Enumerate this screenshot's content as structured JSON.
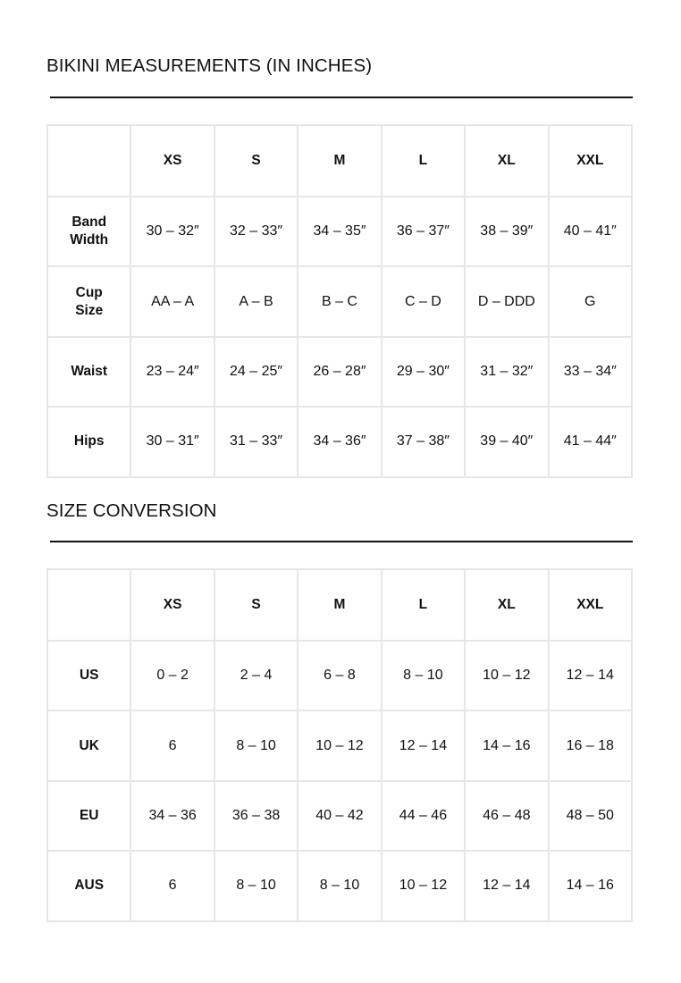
{
  "measurements": {
    "title": "BIKINI MEASUREMENTS (IN INCHES)",
    "headers": [
      "",
      "XS",
      "S",
      "M",
      "L",
      "XL",
      "XXL"
    ],
    "rows": [
      {
        "label": "Band Width",
        "values": [
          "30 – 32″",
          "32 – 33″",
          "34 – 35″",
          "36 – 37″",
          "38 – 39″",
          "40 – 41″"
        ]
      },
      {
        "label": "Cup Size",
        "values": [
          "AA – A",
          "A – B",
          "B – C",
          "C – D",
          "D – DDD",
          "G"
        ]
      },
      {
        "label": "Waist",
        "values": [
          "23 – 24″",
          "24 – 25″",
          "26 – 28″",
          "29 – 30″",
          "31 – 32″",
          "33 – 34″"
        ]
      },
      {
        "label": "Hips",
        "values": [
          "30 – 31″",
          "31 – 33″",
          "34 – 36″",
          "37 – 38″",
          "39 – 40″",
          "41 – 44″"
        ]
      }
    ]
  },
  "conversion": {
    "title": "SIZE CONVERSION",
    "headers": [
      "",
      "XS",
      "S",
      "M",
      "L",
      "XL",
      "XXL"
    ],
    "rows": [
      {
        "label": "US",
        "values": [
          "0 – 2",
          "2 – 4",
          "6 – 8",
          "8 – 10",
          "10 – 12",
          "12 – 14"
        ]
      },
      {
        "label": "UK",
        "values": [
          "6",
          "8 – 10",
          "10 – 12",
          "12 – 14",
          "14 – 16",
          "16 – 18"
        ]
      },
      {
        "label": "EU",
        "values": [
          "34 – 36",
          "36 – 38",
          "40 – 42",
          "44 – 46",
          "46 – 48",
          "48 – 50"
        ]
      },
      {
        "label": "AUS",
        "values": [
          "6",
          "8 – 10",
          "8 – 10",
          "10 – 12",
          "12 – 14",
          "14 – 16"
        ]
      }
    ]
  }
}
